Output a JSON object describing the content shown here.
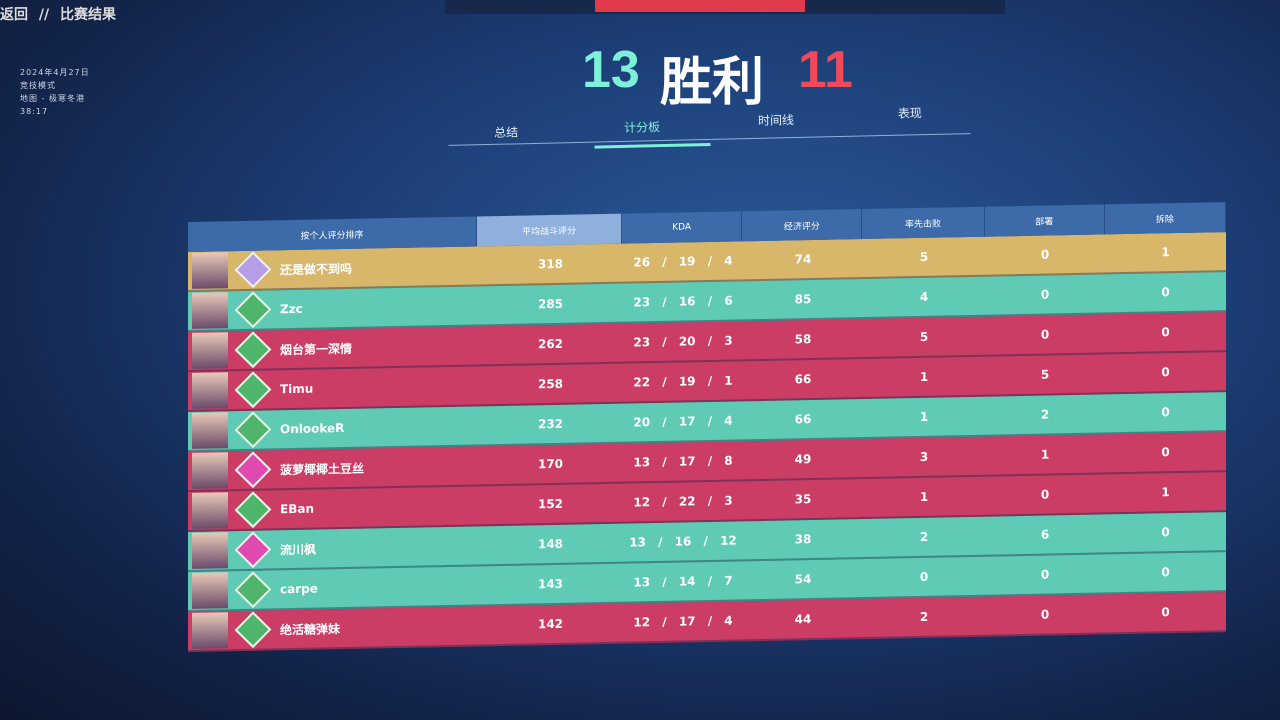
{
  "header": {
    "back": "返回",
    "sep": "//",
    "title": "比赛结果"
  },
  "match": {
    "date": "2024年4月27日",
    "mode": "竞技模式",
    "map": "地图 - 极寒冬港",
    "duration": "38:17"
  },
  "result": {
    "team_score": "13",
    "label": "胜利",
    "enemy_score": "11",
    "team_color": "#7ff0d8",
    "enemy_color": "#f04a5a"
  },
  "tabs": [
    {
      "label": "总结"
    },
    {
      "label": "计分板",
      "active": true
    },
    {
      "label": "时间线"
    },
    {
      "label": "表现"
    }
  ],
  "columns": [
    "按个人评分排序",
    "平均战斗评分",
    "KDA",
    "经济评分",
    "率先击败",
    "部署",
    "拆除"
  ],
  "colors": {
    "gold": "#d8b76a",
    "teal": "#5fcbb5",
    "red": "#cc3d66"
  },
  "rows": [
    {
      "name": "还是做不到吗",
      "acs": "318",
      "kda": "26 / 19 / 4",
      "econ": "74",
      "fb": "5",
      "plant": "0",
      "defuse": "1",
      "team": "gold",
      "rank": "#b79ce8"
    },
    {
      "name": "Zzc",
      "acs": "285",
      "kda": "23 / 16 / 6",
      "econ": "85",
      "fb": "4",
      "plant": "0",
      "defuse": "0",
      "team": "teal",
      "rank": "#4fb56a"
    },
    {
      "name": "烟台第一深情",
      "acs": "262",
      "kda": "23 / 20 / 3",
      "econ": "58",
      "fb": "5",
      "plant": "0",
      "defuse": "0",
      "team": "red",
      "rank": "#4fb56a"
    },
    {
      "name": "Timu",
      "acs": "258",
      "kda": "22 / 19 / 1",
      "econ": "66",
      "fb": "1",
      "plant": "5",
      "defuse": "0",
      "team": "red",
      "rank": "#4fb56a"
    },
    {
      "name": "OnlookeR",
      "acs": "232",
      "kda": "20 / 17 / 4",
      "econ": "66",
      "fb": "1",
      "plant": "2",
      "defuse": "0",
      "team": "teal",
      "rank": "#4fb56a"
    },
    {
      "name": "菠萝椰椰土豆丝",
      "acs": "170",
      "kda": "13 / 17 / 8",
      "econ": "49",
      "fb": "3",
      "plant": "1",
      "defuse": "0",
      "team": "red",
      "rank": "#e04ab0"
    },
    {
      "name": "EBan",
      "acs": "152",
      "kda": "12 / 22 / 3",
      "econ": "35",
      "fb": "1",
      "plant": "0",
      "defuse": "1",
      "team": "red",
      "rank": "#4fb56a"
    },
    {
      "name": "流川枫",
      "acs": "148",
      "kda": "13 / 16 / 12",
      "econ": "38",
      "fb": "2",
      "plant": "6",
      "defuse": "0",
      "team": "teal",
      "rank": "#e04ab0"
    },
    {
      "name": "carpe",
      "acs": "143",
      "kda": "13 / 14 / 7",
      "econ": "54",
      "fb": "0",
      "plant": "0",
      "defuse": "0",
      "team": "teal",
      "rank": "#4fb56a"
    },
    {
      "name": "绝活糖弹妹",
      "acs": "142",
      "kda": "12 / 17 / 4",
      "econ": "44",
      "fb": "2",
      "plant": "0",
      "defuse": "0",
      "team": "red",
      "rank": "#4fb56a"
    }
  ]
}
